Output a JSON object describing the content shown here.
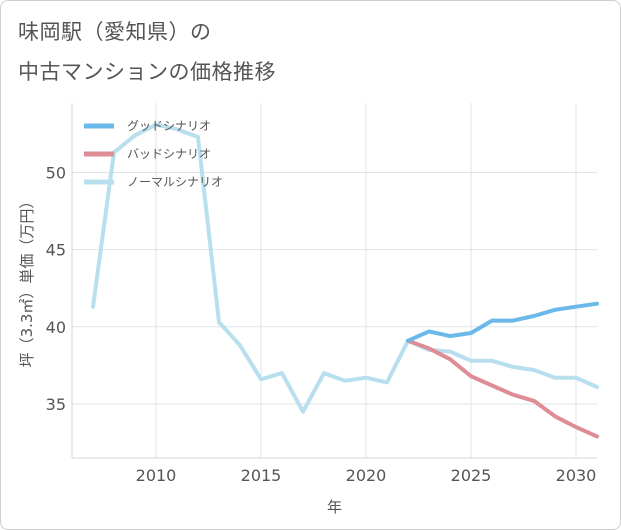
{
  "title_line1": "味岡駅（愛知県）の",
  "title_line2": "中古マンションの価格推移",
  "chart_data": {
    "type": "line",
    "xlabel": "年",
    "ylabel": "坪（3.3㎡）単価（万円）",
    "xlim": [
      2006,
      2031
    ],
    "ylim": [
      31.5,
      54.5
    ],
    "xticks": [
      2010,
      2015,
      2020,
      2025,
      2030
    ],
    "yticks": [
      35,
      40,
      45,
      50
    ],
    "grid": true,
    "legend_position": "top-left",
    "series": [
      {
        "name": "グッドシナリオ",
        "color": "#6bb8ea",
        "x": [
          2022,
          2023,
          2024,
          2025,
          2026,
          2027,
          2028,
          2029,
          2030,
          2031
        ],
        "values": [
          39.1,
          39.7,
          39.4,
          39.6,
          40.4,
          40.4,
          40.7,
          41.1,
          41.3,
          41.5
        ]
      },
      {
        "name": "バッドシナリオ",
        "color": "#de8c95",
        "x": [
          2022,
          2023,
          2024,
          2025,
          2026,
          2027,
          2028,
          2029,
          2030,
          2031
        ],
        "values": [
          39.1,
          38.6,
          37.9,
          36.8,
          36.2,
          35.6,
          35.2,
          34.2,
          33.5,
          32.9
        ]
      },
      {
        "name": "ノーマルシナリオ",
        "color": "#b8dfed",
        "x": [
          2007,
          2008,
          2009,
          2010,
          2011,
          2012,
          2013,
          2014,
          2015,
          2016,
          2017,
          2018,
          2019,
          2020,
          2021,
          2022,
          2023,
          2024,
          2025,
          2026,
          2027,
          2028,
          2029,
          2030,
          2031
        ],
        "values": [
          41.3,
          51.3,
          52.4,
          53.1,
          52.8,
          52.3,
          40.3,
          38.8,
          36.6,
          37.0,
          34.5,
          37.0,
          36.5,
          36.7,
          36.4,
          39.1,
          38.5,
          38.4,
          37.8,
          37.8,
          37.4,
          37.2,
          36.7,
          36.7,
          36.1
        ]
      }
    ]
  }
}
